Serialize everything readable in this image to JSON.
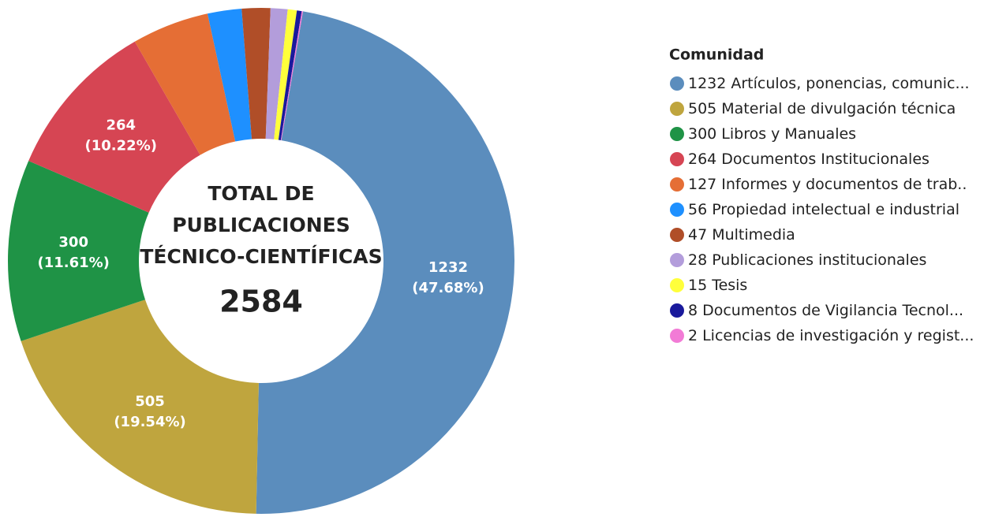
{
  "chart_data": {
    "type": "donut",
    "center_text": [
      "TOTAL DE",
      "PUBLICACIONES",
      "TÉCNICO-CIENTÍFICAS"
    ],
    "center_value": 2584,
    "legend_title": "Comunidad",
    "legend": "right",
    "categories": [
      "Artículos, ponencias, comunic...",
      "Material de divulgación técnica",
      "Libros y Manuales",
      "Documentos Institucionales",
      "Informes y documentos de trab..",
      "Propiedad intelectual e industrial",
      "Multimedia",
      "Publicaciones institucionales",
      "Tesis",
      "Documentos de Vigilancia Tecnol...",
      "Licencias de investigación y regist..."
    ],
    "values": [
      1232,
      505,
      300,
      264,
      127,
      56,
      47,
      28,
      15,
      8,
      2
    ],
    "percent_labels": [
      "(47.68%)",
      "(19.54%)",
      "(11.61%)",
      "(10.22%)",
      null,
      null,
      null,
      null,
      null,
      null,
      null
    ],
    "colors": [
      "#5b8dbd",
      "#bfa53e",
      "#1f9346",
      "#d64553",
      "#e56e35",
      "#1e90ff",
      "#b04e28",
      "#b39ddb",
      "#ffff3b",
      "#1a1a9c",
      "#f27bd6"
    ]
  }
}
